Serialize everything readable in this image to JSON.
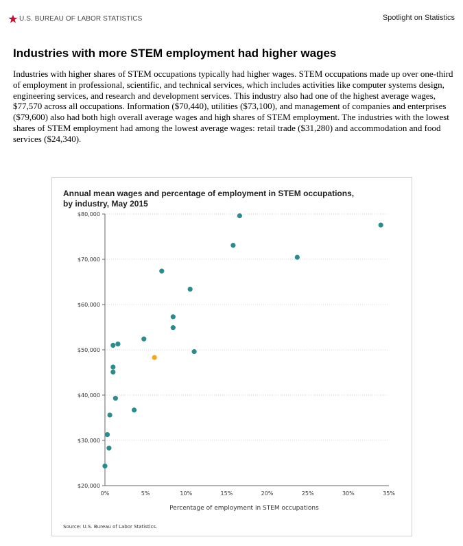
{
  "header": {
    "agency": "U.S. BUREAU OF LABOR STATISTICS",
    "logo_icon": "star-icon",
    "logo_color": "#c8102e",
    "logo_star_accent": "#1f3a8a",
    "spotlight": "Spotlight on Statistics"
  },
  "article": {
    "title": "Industries with more STEM employment had higher wages",
    "paragraph": "Industries with higher shares of STEM occupations typically had higher wages. STEM occupations made up over one-third of employment in professional, scientific, and technical services, which includes activities like computer systems design, engineering services, and research and development services. This industry also had one of the highest average wages, $77,570 across all occupations. Information ($70,440), utilities ($73,100), and management of companies and enterprises ($79,600) also had both high overall average wages and high shares of STEM employment. The industries with the lowest shares of STEM employment had among the lowest average wages: retail trade ($31,280) and accommodation and food services ($24,340)."
  },
  "chart_data": {
    "type": "scatter",
    "title_lines": [
      "Annual mean wages and percentage of employment in STEM occupations,",
      "by industry, May 2015"
    ],
    "xlabel": "Percentage of employment in STEM occupations",
    "ylabel": "",
    "source": "Source: U.S. Bureau of Labor Statistics.",
    "xlim": [
      0,
      35
    ],
    "ylim": [
      20000,
      80000
    ],
    "x_ticks": [
      0,
      5,
      10,
      15,
      20,
      25,
      30,
      35
    ],
    "x_tick_labels": [
      "0%",
      "5%",
      "10%",
      "15%",
      "20%",
      "25%",
      "30%",
      "35%"
    ],
    "y_ticks": [
      20000,
      30000,
      40000,
      50000,
      60000,
      70000,
      80000
    ],
    "y_tick_labels": [
      "$20,000",
      "$30,000",
      "$40,000",
      "$50,000",
      "$60,000",
      "$70,000",
      "$80,000"
    ],
    "grid_y": true,
    "series_colors": [
      "#2a8c8c",
      "#f5a623"
    ],
    "points": [
      {
        "x": 16.6,
        "y": 79600,
        "highlight": false
      },
      {
        "x": 34.0,
        "y": 77570,
        "highlight": false
      },
      {
        "x": 15.8,
        "y": 73100,
        "highlight": false
      },
      {
        "x": 23.7,
        "y": 70440,
        "highlight": false
      },
      {
        "x": 7.0,
        "y": 67400,
        "highlight": false
      },
      {
        "x": 10.5,
        "y": 63400,
        "highlight": false
      },
      {
        "x": 8.4,
        "y": 57300,
        "highlight": false
      },
      {
        "x": 8.4,
        "y": 54900,
        "highlight": false
      },
      {
        "x": 4.8,
        "y": 52400,
        "highlight": false
      },
      {
        "x": 1.6,
        "y": 51300,
        "highlight": false
      },
      {
        "x": 1.0,
        "y": 51000,
        "highlight": false
      },
      {
        "x": 11.0,
        "y": 49600,
        "highlight": false
      },
      {
        "x": 6.1,
        "y": 48300,
        "highlight": true
      },
      {
        "x": 1.0,
        "y": 46200,
        "highlight": false
      },
      {
        "x": 1.0,
        "y": 45100,
        "highlight": false
      },
      {
        "x": 1.3,
        "y": 39300,
        "highlight": false
      },
      {
        "x": 3.6,
        "y": 36700,
        "highlight": false
      },
      {
        "x": 0.6,
        "y": 35600,
        "highlight": false
      },
      {
        "x": 0.3,
        "y": 31280,
        "highlight": false
      },
      {
        "x": 0.5,
        "y": 28300,
        "highlight": false
      },
      {
        "x": 0.0,
        "y": 24340,
        "highlight": false
      }
    ]
  }
}
